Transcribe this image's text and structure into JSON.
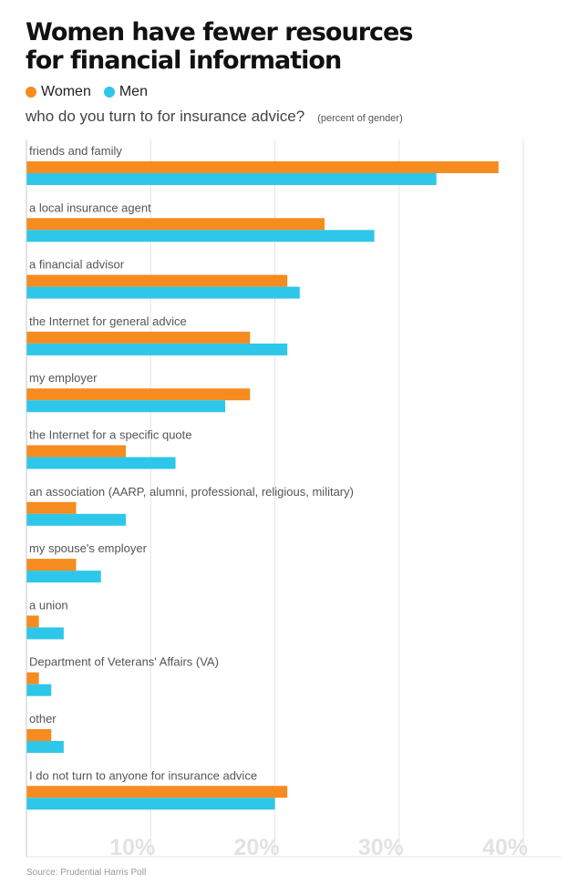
{
  "header": {
    "title_line1": "Women have fewer resources",
    "title_line2": "for financial information",
    "subtitle": "who do you turn to for insurance advice?",
    "unit_note": "(percent of gender)"
  },
  "footer": {
    "source": "Source: Prudential Harris Poll"
  },
  "colors": {
    "women": "#f68b1f",
    "men": "#2ec7ea",
    "grid": "#e4e4e4",
    "tick": "#e2e2e2",
    "label": "#555555"
  },
  "chart_data": {
    "type": "bar",
    "orientation": "horizontal",
    "categories": [
      "friends and family",
      "a local insurance agent",
      "a financial advisor",
      "the Internet for general advice",
      "my employer",
      "the Internet for a specific quote",
      "an association (AARP, alumni, professional, religious, military)",
      "my spouse's employer",
      "a union",
      "Department of Veterans' Affairs (VA)",
      "other",
      "I do not turn to anyone for insurance advice"
    ],
    "series": [
      {
        "name": "Women",
        "values": [
          38,
          24,
          21,
          18,
          18,
          8,
          4,
          4,
          1,
          1,
          2,
          21
        ]
      },
      {
        "name": "Men",
        "values": [
          33,
          28,
          22,
          21,
          16,
          12,
          8,
          6,
          3,
          2,
          3,
          20
        ]
      }
    ],
    "xlim": [
      0,
      43
    ],
    "xticks": [
      10,
      20,
      30,
      40
    ],
    "xtick_labels": [
      "10%",
      "20%",
      "30%",
      "40%"
    ],
    "grid": true,
    "legend_position": "top-left"
  }
}
